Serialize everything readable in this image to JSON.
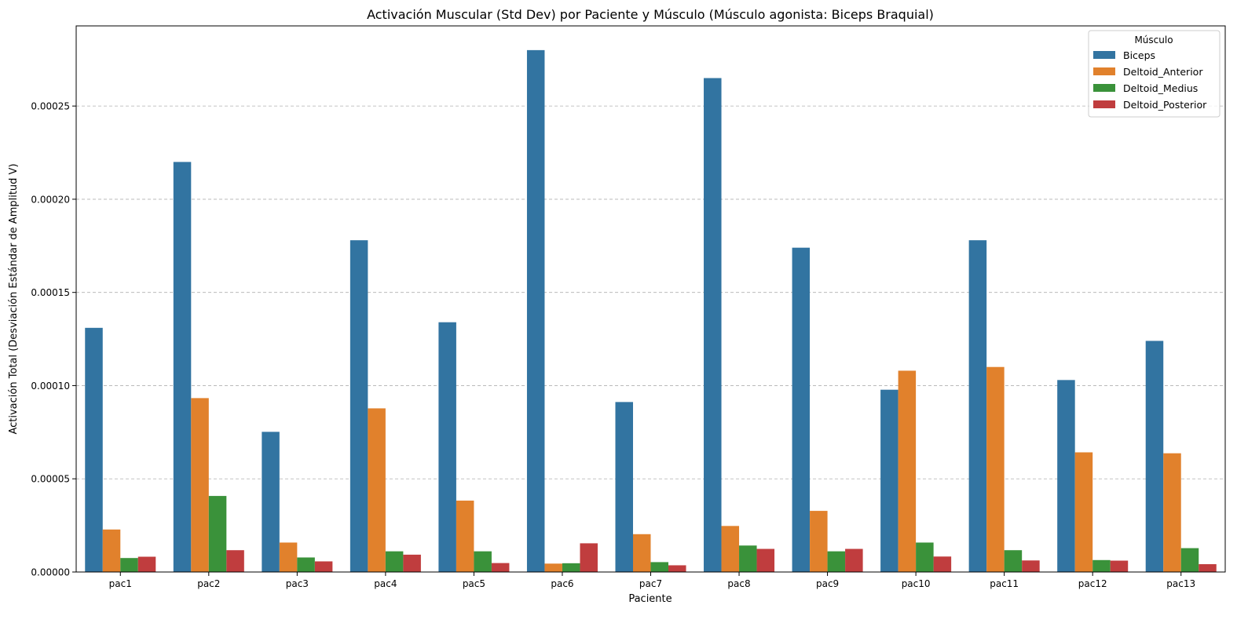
{
  "chart_data": {
    "type": "bar",
    "title": "Activación Muscular (Std Dev) por Paciente y Músculo (Músculo agonista: Biceps Braquial)",
    "xlabel": "Paciente",
    "ylabel": "Activación Total (Desviación Estándar de Amplitud V)",
    "ylim": [
      0,
      0.000293
    ],
    "yticks": [
      0,
      5e-05,
      0.0001,
      0.00015,
      0.0002,
      0.00025
    ],
    "ytick_labels": [
      "0.00000",
      "0.00005",
      "0.00010",
      "0.00015",
      "0.00020",
      "0.00025"
    ],
    "grid": "horizontal dashed",
    "legend_title": "Músculo",
    "legend_position": "top-right",
    "categories": [
      "pac1",
      "pac2",
      "pac3",
      "pac4",
      "pac5",
      "pac6",
      "pac7",
      "pac8",
      "pac9",
      "pac10",
      "pac11",
      "pac12",
      "pac13"
    ],
    "series": [
      {
        "name": "Biceps",
        "color": "#3274a1",
        "values": [
          0.000131,
          0.00022,
          7.52e-05,
          0.000178,
          0.000134,
          0.00028,
          9.12e-05,
          0.000265,
          0.000174,
          9.78e-05,
          0.000178,
          0.000103,
          0.000124
        ]
      },
      {
        "name": "Deltoid_Anterior",
        "color": "#e1812c",
        "values": [
          2.28e-05,
          9.33e-05,
          1.58e-05,
          8.78e-05,
          3.83e-05,
          4.5e-06,
          2.03e-05,
          2.47e-05,
          3.28e-05,
          0.000108,
          0.00011,
          6.42e-05,
          6.37e-05
        ]
      },
      {
        "name": "Deltoid_Medius",
        "color": "#3a923a",
        "values": [
          7.5e-06,
          4.08e-05,
          7.8e-06,
          1.11e-05,
          1.11e-05,
          4.7e-06,
          5.3e-06,
          1.42e-05,
          1.11e-05,
          1.58e-05,
          1.17e-05,
          6.4e-06,
          1.28e-05
        ]
      },
      {
        "name": "Deltoid_Posterior",
        "color": "#c03d3e",
        "values": [
          8.2e-06,
          1.17e-05,
          5.7e-06,
          9.3e-06,
          4.8e-06,
          1.54e-05,
          3.6e-06,
          1.24e-05,
          1.24e-05,
          8.3e-06,
          6.2e-06,
          6.1e-06,
          4.2e-06
        ]
      }
    ]
  }
}
